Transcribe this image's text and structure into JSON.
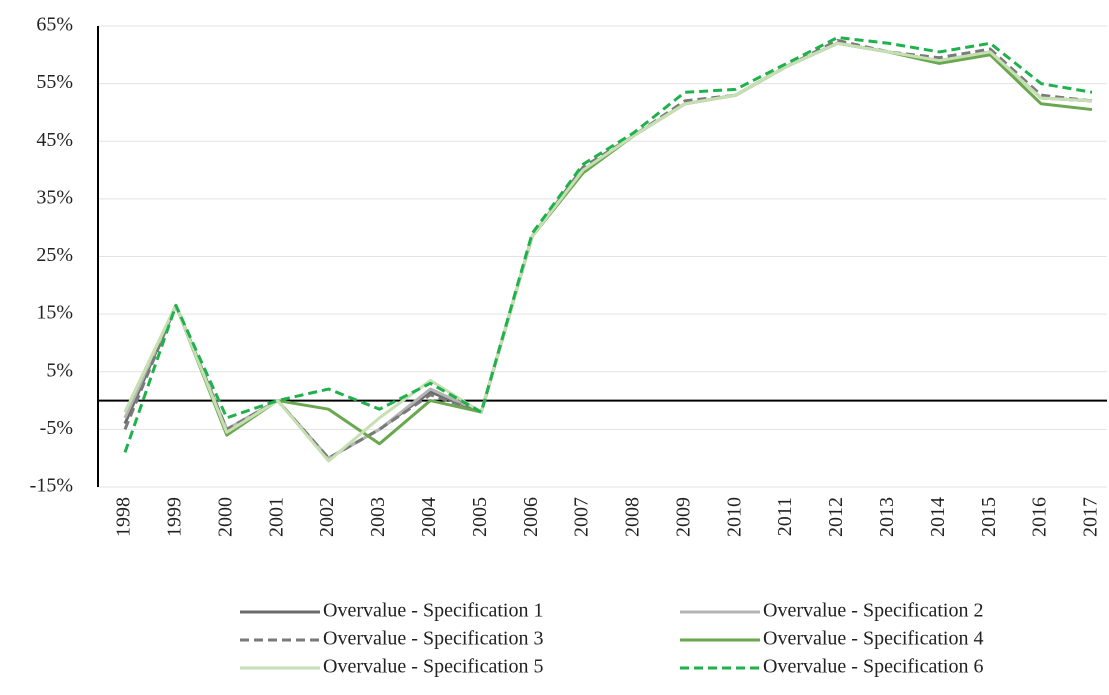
{
  "chart_data": {
    "type": "line",
    "categories": [
      "1998",
      "1999",
      "2000",
      "2001",
      "2002",
      "2003",
      "2004",
      "2005",
      "2006",
      "2007",
      "2008",
      "2009",
      "2010",
      "2011",
      "2012",
      "2013",
      "2014",
      "2015",
      "2016",
      "2017"
    ],
    "series": [
      {
        "name": "Overvalue - Specification 1",
        "color": "#6b6b6b",
        "style": "solid",
        "values": [
          -4,
          16.5,
          -5,
          0,
          -10,
          -5,
          1.5,
          -2,
          28.5,
          40,
          46,
          51.5,
          53,
          58,
          62,
          60.5,
          59,
          60.5,
          52.5,
          52
        ]
      },
      {
        "name": "Overvalue - Specification 2",
        "color": "#b4b4b4",
        "style": "solid",
        "values": [
          -3,
          16.5,
          -5,
          0,
          -10,
          -5,
          2,
          -2,
          28.5,
          40,
          46,
          51.5,
          53,
          58,
          62,
          60.5,
          59,
          60.5,
          52.5,
          52
        ]
      },
      {
        "name": "Overvalue - Specification 3",
        "color": "#7a7a7a",
        "style": "dashed",
        "values": [
          -5,
          16.5,
          -5,
          0,
          -10,
          -5,
          1,
          -2,
          28.5,
          40.5,
          46,
          52,
          53,
          58,
          62.5,
          60.5,
          59.5,
          61,
          53,
          52
        ]
      },
      {
        "name": "Overvalue - Specification 4",
        "color": "#6aa84f",
        "style": "solid",
        "values": [
          -2,
          16.5,
          -6,
          0,
          -1.5,
          -7.5,
          0,
          -2,
          28.5,
          39.5,
          46,
          51.5,
          53,
          58,
          62,
          60.5,
          58.5,
          60,
          51.5,
          50.5
        ]
      },
      {
        "name": "Overvalue - Specification 5",
        "color": "#c6e0b4",
        "style": "solid",
        "values": [
          -2,
          16.5,
          -5.5,
          0,
          -10.5,
          -3,
          3.5,
          -2,
          28.5,
          40,
          46,
          51.5,
          53,
          58,
          62,
          60.5,
          59,
          60.5,
          52.5,
          52
        ]
      },
      {
        "name": "Overvalue - Specification 6",
        "color": "#1fb14c",
        "style": "dashed",
        "values": [
          -9,
          16.5,
          -3,
          0,
          2,
          -1.5,
          3,
          -2,
          29,
          41,
          46.5,
          53.5,
          54,
          58.5,
          63,
          62,
          60.5,
          62,
          55,
          53.5
        ]
      }
    ],
    "ylim": [
      -15,
      65
    ],
    "yticks": [
      {
        "value": -15,
        "label": "-15%"
      },
      {
        "value": -5,
        "label": "-5%"
      },
      {
        "value": 5,
        "label": "5%"
      },
      {
        "value": 15,
        "label": "15%"
      },
      {
        "value": 25,
        "label": "25%"
      },
      {
        "value": 35,
        "label": "35%"
      },
      {
        "value": 45,
        "label": "45%"
      },
      {
        "value": 55,
        "label": "55%"
      },
      {
        "value": 65,
        "label": "65%"
      }
    ],
    "grid": true,
    "legend": "bottom"
  }
}
